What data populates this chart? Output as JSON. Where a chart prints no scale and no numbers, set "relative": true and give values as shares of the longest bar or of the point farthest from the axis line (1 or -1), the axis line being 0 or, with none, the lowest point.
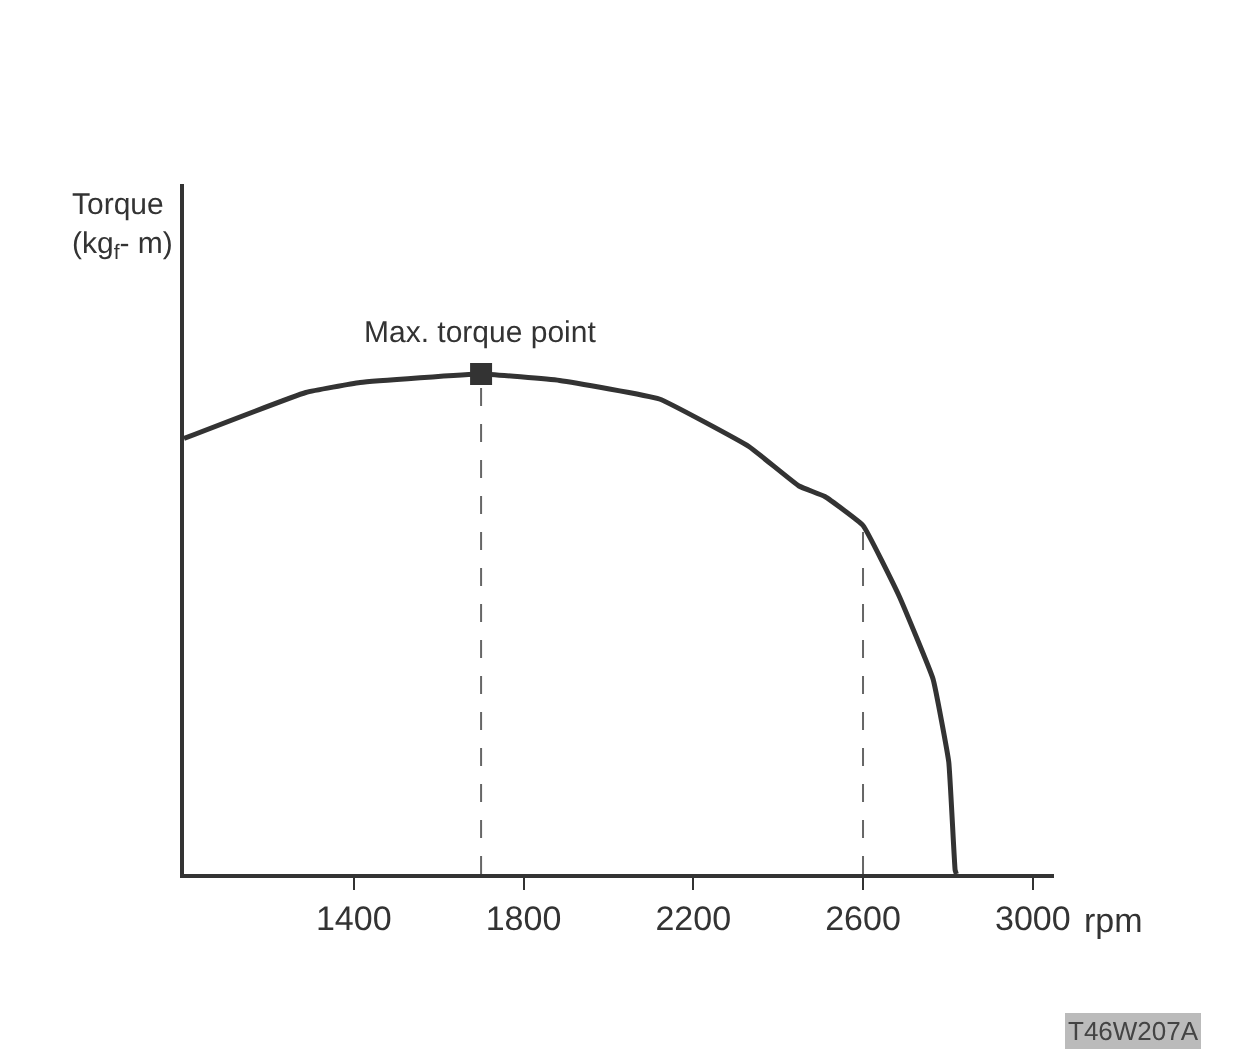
{
  "chart_data": {
    "type": "line",
    "relative": true,
    "xlabel": "rpm",
    "ylabel": "Torque (kg$_{f}$- m)",
    "xlim": [
      1000,
      3050
    ],
    "xticks": [
      1400,
      1800,
      2200,
      2600,
      3000
    ],
    "series": [
      {
        "color": "#333333",
        "line_style": "solid",
        "x": [
          1000,
          1287,
          1415,
          1700,
          1885,
          2120,
          2331,
          2449,
          2510,
          2600,
          2685,
          2765,
          2802,
          2817,
          2820
        ],
        "values": [
          0.871,
          0.963,
          0.983,
          1.0,
          0.987,
          0.95,
          0.855,
          0.776,
          0.755,
          0.697,
          0.556,
          0.39,
          0.224,
          0.008,
          0
        ]
      },
      {
        "type": "scatter",
        "color": "#333333",
        "marker": "square",
        "x": [
          1700
        ],
        "values": [
          1.0
        ]
      }
    ],
    "ref_lines": [
      {
        "axis": "x",
        "value": 1700,
        "color": "#666666",
        "line_style": "dashed"
      },
      {
        "axis": "x",
        "value": 2600,
        "color": "#666666",
        "line_style": "dashed"
      }
    ],
    "annotations": [
      "Max. torque point",
      "T46W207A"
    ],
    "marker": "none"
  }
}
